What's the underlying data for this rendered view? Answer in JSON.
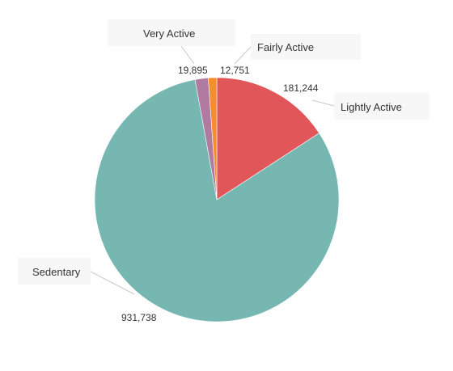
{
  "chart_data": {
    "type": "pie",
    "slices": [
      {
        "label": "Lightly Active",
        "value": 181244,
        "value_label": "181,244",
        "color": "#e15759"
      },
      {
        "label": "Sedentary",
        "value": 931738,
        "value_label": "931,738",
        "color": "#76b7b2"
      },
      {
        "label": "Very Active",
        "value": 19895,
        "value_label": "19,895",
        "color": "#b07aa1"
      },
      {
        "label": "Fairly Active",
        "value": 12751,
        "value_label": "12,751",
        "color": "#f28e2b"
      }
    ],
    "title": "",
    "legend": "none"
  }
}
